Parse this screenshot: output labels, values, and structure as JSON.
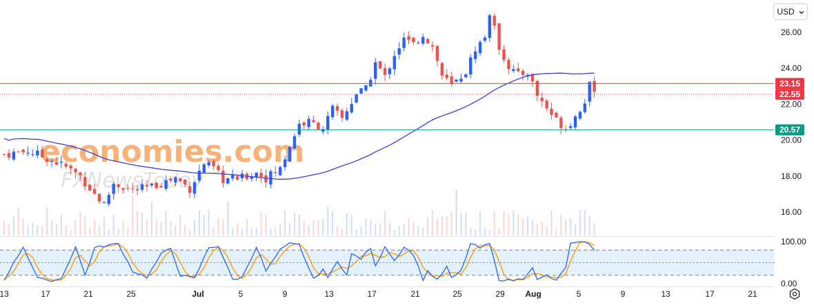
{
  "currency": {
    "label": "USD",
    "chevron_icon": "chevron-down-icon"
  },
  "settings_icon": "gear-icon",
  "watermark": {
    "brand": "economies.com",
    "brand_sub": "FXNewsToday"
  },
  "colors": {
    "up": "#2962ff",
    "down": "#ef5350",
    "ma": "#3f3fd8",
    "resistance": "#f23645",
    "support": "#089981",
    "stoch_k": "#2962ff",
    "stoch_d": "#ff9800",
    "watermark": "#f7b27a",
    "band": "#e3f0fd"
  },
  "chart_data": {
    "type": "candlestick",
    "price_axis": {
      "ticks": [
        "16.00",
        "18.00",
        "20.00",
        "22.00",
        "24.00",
        "26.00"
      ],
      "ylim": [
        14.7,
        27.6
      ]
    },
    "time_axis": {
      "ticks": [
        "13",
        "17",
        "21",
        "25",
        "Jul",
        "5",
        "9",
        "13",
        "17",
        "21",
        "25",
        "29",
        "Aug",
        "5",
        "9",
        "13",
        "17",
        "21"
      ]
    },
    "price_tags": [
      {
        "label": "23.15",
        "value": 23.15,
        "kind": "resistance"
      },
      {
        "label": "22.55",
        "value": 22.55,
        "kind": "last"
      },
      {
        "label": "20.57",
        "value": 20.57,
        "kind": "support"
      }
    ],
    "horizontal_lines": [
      {
        "value": 23.15,
        "style": "solid",
        "kind": "resistance"
      },
      {
        "value": 22.55,
        "style": "dotted",
        "kind": "last"
      },
      {
        "value": 20.57,
        "style": "solid",
        "kind": "support"
      }
    ],
    "waypoints": [
      [
        0,
        19.2
      ],
      [
        5,
        19.4
      ],
      [
        9,
        19.0
      ],
      [
        13,
        18.5
      ],
      [
        16,
        18.0
      ],
      [
        19,
        17.0
      ],
      [
        21,
        16.4
      ],
      [
        23,
        17.6
      ],
      [
        27,
        17.2
      ],
      [
        31,
        17.4
      ],
      [
        36,
        17.9
      ],
      [
        39,
        17.3
      ],
      [
        42,
        18.7
      ],
      [
        44,
        18.4
      ],
      [
        46,
        17.8
      ],
      [
        50,
        17.9
      ],
      [
        53,
        18.2
      ],
      [
        55,
        17.9
      ],
      [
        58,
        18.4
      ],
      [
        60,
        19.7
      ],
      [
        62,
        20.9
      ],
      [
        64,
        21.0
      ],
      [
        67,
        20.7
      ],
      [
        69,
        21.7
      ],
      [
        71,
        21.2
      ],
      [
        74,
        22.6
      ],
      [
        76,
        22.8
      ],
      [
        78,
        24.3
      ],
      [
        80,
        23.5
      ],
      [
        82,
        24.8
      ],
      [
        84,
        25.6
      ],
      [
        86,
        25.3
      ],
      [
        88,
        25.9
      ],
      [
        90,
        25.2
      ],
      [
        92,
        23.6
      ],
      [
        94,
        23.0
      ],
      [
        97,
        23.8
      ],
      [
        99,
        25.1
      ],
      [
        101,
        25.7
      ],
      [
        102,
        27.1
      ],
      [
        104,
        25.2
      ],
      [
        106,
        24.1
      ],
      [
        108,
        23.6
      ],
      [
        110,
        23.8
      ],
      [
        112,
        22.5
      ],
      [
        114,
        21.8
      ],
      [
        116,
        21.1
      ],
      [
        118,
        20.7
      ],
      [
        120,
        21.3
      ],
      [
        122,
        22.2
      ],
      [
        123,
        23.0
      ],
      [
        124,
        22.5
      ]
    ],
    "sma": {
      "start_index": 26,
      "length": 50
    },
    "volume": {
      "scale_note": "relative"
    },
    "stochastic": {
      "ticks": [
        "0.00",
        "100.00"
      ],
      "levels": [
        0,
        20,
        50,
        80,
        100
      ],
      "ylim": [
        -5,
        110
      ],
      "waypoints": [
        [
          0,
          10
        ],
        [
          4,
          88
        ],
        [
          7,
          15
        ],
        [
          9,
          6
        ],
        [
          12,
          12
        ],
        [
          15,
          88
        ],
        [
          17,
          20
        ],
        [
          19,
          85
        ],
        [
          22,
          92
        ],
        [
          24,
          95
        ],
        [
          27,
          30
        ],
        [
          30,
          15
        ],
        [
          33,
          70
        ],
        [
          35,
          85
        ],
        [
          37,
          20
        ],
        [
          40,
          12
        ],
        [
          43,
          86
        ],
        [
          45,
          90
        ],
        [
          48,
          10
        ],
        [
          50,
          15
        ],
        [
          53,
          88
        ],
        [
          55,
          30
        ],
        [
          58,
          80
        ],
        [
          60,
          95
        ],
        [
          62,
          92
        ],
        [
          65,
          10
        ],
        [
          67,
          35
        ],
        [
          68,
          12
        ],
        [
          70,
          55
        ],
        [
          72,
          20
        ],
        [
          73,
          70
        ],
        [
          75,
          60
        ],
        [
          77,
          85
        ],
        [
          78,
          40
        ],
        [
          80,
          90
        ],
        [
          82,
          55
        ],
        [
          84,
          88
        ],
        [
          86,
          70
        ],
        [
          88,
          10
        ],
        [
          89,
          30
        ],
        [
          91,
          8
        ],
        [
          93,
          40
        ],
        [
          94,
          12
        ],
        [
          96,
          30
        ],
        [
          98,
          95
        ],
        [
          100,
          85
        ],
        [
          102,
          95
        ],
        [
          104,
          10
        ],
        [
          107,
          8
        ],
        [
          109,
          12
        ],
        [
          111,
          40
        ],
        [
          112,
          8
        ],
        [
          114,
          20
        ],
        [
          116,
          6
        ],
        [
          118,
          40
        ],
        [
          119,
          95
        ],
        [
          121,
          98
        ],
        [
          123,
          96
        ],
        [
          124,
          78
        ]
      ]
    }
  }
}
